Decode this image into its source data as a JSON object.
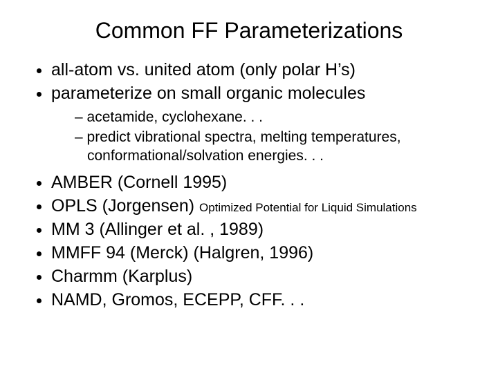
{
  "title": "Common FF Parameterizations",
  "bullets": {
    "l1_0": "all-atom vs. united atom (only polar H’s)",
    "l1_1": "parameterize on small organic molecules",
    "l2_0": "acetamide, cyclohexane. . .",
    "l2_1": "predict vibrational spectra, melting temperatures, conformational/solvation energies. . .",
    "l1_2": "AMBER (Cornell 1995)",
    "l1_3a": "OPLS (Jorgensen) ",
    "l1_3b": "Optimized Potential for Liquid Simulations",
    "l1_4": "MM 3 (Allinger et al. , 1989)",
    "l1_5": "MMFF 94 (Merck) (Halgren, 1996)",
    "l1_6": "Charmm (Karplus)",
    "l1_7": "NAMD, Gromos, ECEPP, CFF. . ."
  },
  "colors": {
    "background": "#ffffff",
    "text": "#000000"
  },
  "font": {
    "title_pt": 32,
    "body_pt": 25,
    "sub_pt": 21,
    "note_pt": 17
  }
}
